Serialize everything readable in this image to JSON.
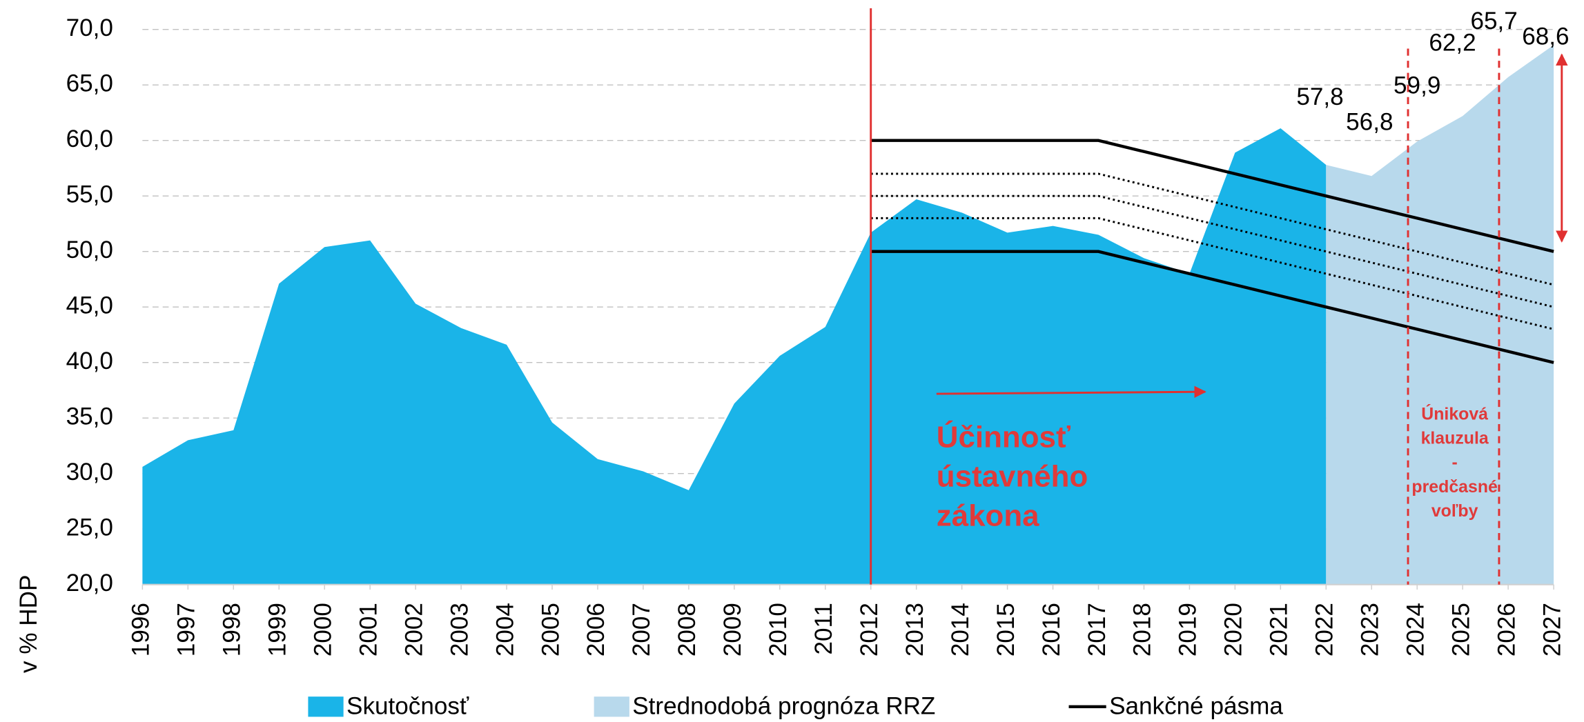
{
  "chart_data": {
    "type": "area",
    "y_label": "v % HDP",
    "x": [
      1996,
      1997,
      1998,
      1999,
      2000,
      2001,
      2002,
      2003,
      2004,
      2005,
      2006,
      2007,
      2008,
      2009,
      2010,
      2011,
      2012,
      2013,
      2014,
      2015,
      2016,
      2017,
      2018,
      2019,
      2020,
      2021,
      2022,
      2023,
      2024,
      2025,
      2026,
      2027
    ],
    "xlim": [
      1996,
      2027
    ],
    "xticks": [
      1996,
      1997,
      1998,
      1999,
      2000,
      2001,
      2002,
      2003,
      2004,
      2005,
      2006,
      2007,
      2008,
      2009,
      2010,
      2011,
      2012,
      2013,
      2014,
      2015,
      2016,
      2017,
      2018,
      2019,
      2020,
      2021,
      2022,
      2023,
      2024,
      2025,
      2026,
      2027
    ],
    "ylim": [
      20,
      70
    ],
    "yticks": [
      {
        "value": 20,
        "label": "20,0"
      },
      {
        "value": 25,
        "label": "25,0"
      },
      {
        "value": 30,
        "label": "30,0"
      },
      {
        "value": 35,
        "label": "35,0"
      },
      {
        "value": 40,
        "label": "40,0"
      },
      {
        "value": 45,
        "label": "45,0"
      },
      {
        "value": 50,
        "label": "50,0"
      },
      {
        "value": 55,
        "label": "55,0"
      },
      {
        "value": 60,
        "label": "60,0"
      },
      {
        "value": 65,
        "label": "65,0"
      },
      {
        "value": 70,
        "label": "70,0"
      }
    ],
    "grid": true,
    "series": [
      {
        "name": "Skutočnosť",
        "type": "area",
        "color": "#1ab4e8",
        "values": [
          30.6,
          33.0,
          33.9,
          47.1,
          50.4,
          51.0,
          45.3,
          43.1,
          41.6,
          34.6,
          31.3,
          30.2,
          28.5,
          36.3,
          40.6,
          43.2,
          51.7,
          54.7,
          53.5,
          51.7,
          52.3,
          51.5,
          49.4,
          48.0,
          58.9,
          61.1,
          57.8,
          null,
          null,
          null,
          null,
          null
        ]
      },
      {
        "name": "Strednodobá prognóza RRZ",
        "type": "area",
        "color": "#b8d9ec",
        "values": [
          null,
          null,
          null,
          null,
          null,
          null,
          null,
          null,
          null,
          null,
          null,
          null,
          null,
          null,
          null,
          null,
          null,
          null,
          null,
          null,
          null,
          null,
          null,
          null,
          null,
          null,
          57.8,
          56.8,
          59.9,
          62.2,
          65.7,
          68.6
        ],
        "value_labels": [
          null,
          null,
          null,
          null,
          null,
          null,
          null,
          null,
          null,
          null,
          null,
          null,
          null,
          null,
          null,
          null,
          null,
          null,
          null,
          null,
          null,
          null,
          null,
          null,
          null,
          null,
          "57,8",
          "56,8",
          "59,9",
          "62,2",
          "65,7",
          "68,6"
        ]
      },
      {
        "name": "Sankčné pásma",
        "type": "line",
        "color": "#000000",
        "lines": [
          {
            "style": "solid",
            "values": [
              null,
              null,
              null,
              null,
              null,
              null,
              null,
              null,
              null,
              null,
              null,
              null,
              null,
              null,
              null,
              null,
              60,
              60,
              60,
              60,
              60,
              60,
              59,
              58,
              57,
              56,
              55,
              54,
              53,
              52,
              51,
              50
            ]
          },
          {
            "style": "dotted",
            "values": [
              null,
              null,
              null,
              null,
              null,
              null,
              null,
              null,
              null,
              null,
              null,
              null,
              null,
              null,
              null,
              null,
              57,
              57,
              57,
              57,
              57,
              57,
              56,
              55,
              54,
              53,
              52,
              51,
              50,
              49,
              48,
              47
            ]
          },
          {
            "style": "dotted",
            "values": [
              null,
              null,
              null,
              null,
              null,
              null,
              null,
              null,
              null,
              null,
              null,
              null,
              null,
              null,
              null,
              null,
              55,
              55,
              55,
              55,
              55,
              55,
              54,
              53,
              52,
              51,
              50,
              49,
              48,
              47,
              46,
              45
            ]
          },
          {
            "style": "dotted",
            "values": [
              null,
              null,
              null,
              null,
              null,
              null,
              null,
              null,
              null,
              null,
              null,
              null,
              null,
              null,
              null,
              null,
              53,
              53,
              53,
              53,
              53,
              53,
              52,
              51,
              50,
              49,
              48,
              47,
              46,
              45,
              44,
              43
            ]
          },
          {
            "style": "solid",
            "values": [
              null,
              null,
              null,
              null,
              null,
              null,
              null,
              null,
              null,
              null,
              null,
              null,
              null,
              null,
              null,
              null,
              50,
              50,
              50,
              50,
              50,
              50,
              49,
              48,
              47,
              46,
              45,
              44,
              43,
              42,
              41,
              40
            ]
          }
        ]
      }
    ],
    "reference_lines": [
      {
        "x": 2012,
        "style": "solid"
      },
      {
        "x": 2023.8,
        "style": "dashed"
      },
      {
        "x": 2025.8,
        "style": "dashed"
      }
    ],
    "reference_color": "#e03030",
    "annotations": [
      {
        "lines": [
          "Účinnosť",
          "ústavného",
          "zákona"
        ]
      },
      {
        "lines": [
          "Úniková",
          "klauzula",
          "-",
          "predčasné",
          "voľby"
        ]
      }
    ]
  }
}
